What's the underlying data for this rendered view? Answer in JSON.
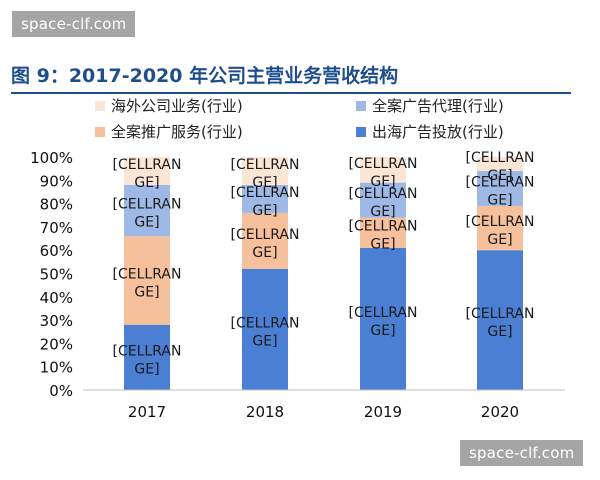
{
  "watermark": {
    "top_text": "space-clf.com",
    "bottom_text": "space-clf.com"
  },
  "figure_title": "图 9：2017-2020 年公司主营业务营收结构",
  "chart_data": {
    "type": "bar",
    "stacked": true,
    "categories": [
      "2017",
      "2018",
      "2019",
      "2020"
    ],
    "ylim": [
      0,
      100
    ],
    "yticks": [
      "0%",
      "10%",
      "20%",
      "30%",
      "40%",
      "50%",
      "60%",
      "70%",
      "80%",
      "90%",
      "100%"
    ],
    "legend_position": "top",
    "grid": false,
    "series": [
      {
        "name": "出海广告投放(行业)",
        "color": "#4a7fd4",
        "values": [
          28,
          52,
          61,
          60
        ],
        "labels": [
          "[CELLRAN GE]",
          "[CELLRAN GE]",
          "[CELLRAN GE]",
          "[CELLRAN GE]"
        ]
      },
      {
        "name": "全案推广服务(行业)",
        "color": "#f5c09b",
        "values": [
          38,
          24,
          13,
          19
        ],
        "labels": [
          "[CELLRAN GE]",
          "[CELLRAN GE]",
          "[CELLRAN GE]",
          "[CELLRAN GE]"
        ]
      },
      {
        "name": "全案广告代理(行业)",
        "color": "#9fb9e6",
        "values": [
          22,
          12,
          15,
          15
        ],
        "labels": [
          "[CELLRAN GE]",
          "[CELLRAN GE]",
          "[CELLRAN GE]",
          "[CELLRAN GE]"
        ]
      },
      {
        "name": "海外公司业务(行业)",
        "color": "#fbe6d6",
        "values": [
          12,
          12,
          11,
          6
        ],
        "labels": [
          "[CELLRAN GE]",
          "[CELLRAN GE]",
          "[CELLRAN GE]",
          "[CELLRAN GE]"
        ]
      }
    ],
    "legend_order": [
      3,
      2,
      1,
      0
    ]
  }
}
